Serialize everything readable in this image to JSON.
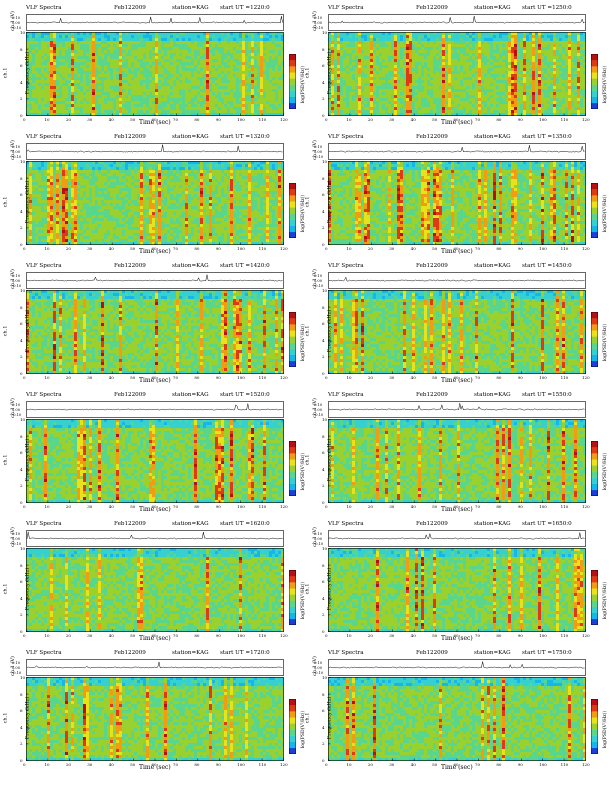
{
  "colors": {
    "colormap": [
      "#1c3fd8",
      "#16b6e8",
      "#36d0d0",
      "#5ad68c",
      "#9ad12e",
      "#e8e21c",
      "#f29c14",
      "#e03a14",
      "#b81010"
    ],
    "trace": "#000000"
  },
  "common": {
    "title": "VLF Spectra",
    "station": "station=KAG",
    "ch_label": "ch.1 (V)",
    "ch_ticks": [
      "0.10",
      "0.00",
      "-0.10"
    ],
    "ylabel": "Frequency (kHz)",
    "channel": "ch.1",
    "cbar_label": "log(PSD(V²/Hz))",
    "xlabel": "Time (sec)",
    "x_ticks": [
      "0",
      "10",
      "20",
      "30",
      "40",
      "50",
      "60",
      "70",
      "80",
      "90",
      "100",
      "110",
      "120"
    ],
    "y_ticks": [
      "0",
      "2",
      "4",
      "6",
      "8",
      "10"
    ]
  },
  "panels": [
    {
      "date": "Feb122009",
      "ut": "start UT =1220:0"
    },
    {
      "date": "Feb122009",
      "ut": "start UT =1250:0"
    },
    {
      "date": "Feb122009",
      "ut": "start UT =1320:0"
    },
    {
      "date": "Feb122009",
      "ut": "start UT =1350:0"
    },
    {
      "date": "Feb122009",
      "ut": "start UT =1420:0"
    },
    {
      "date": "Feb122009",
      "ut": "start UT =1450:0"
    },
    {
      "date": "Feb122009",
      "ut": "start UT =1520:0"
    },
    {
      "date": "Feb122009",
      "ut": "start UT =1550:0"
    },
    {
      "date": "Feb122009",
      "ut": "start UT =1620:0"
    },
    {
      "date": "Feb122009",
      "ut": "start UT =1650:0"
    },
    {
      "date": "Feb122009",
      "ut": "start UT =1720:0"
    },
    {
      "date": "Feb122009",
      "ut": "start UT =1750:0"
    }
  ],
  "chart_data": {
    "type": "heatmap",
    "xlabel": "Time (sec)",
    "ylabel": "Frequency (kHz)",
    "xlim": [
      0,
      120
    ],
    "ylim": [
      0,
      10
    ],
    "ts_ylim": [
      -0.1,
      0.1
    ],
    "colorbar_label": "log(PSD(V²/Hz))",
    "grid": false,
    "n_panels": 12
  }
}
